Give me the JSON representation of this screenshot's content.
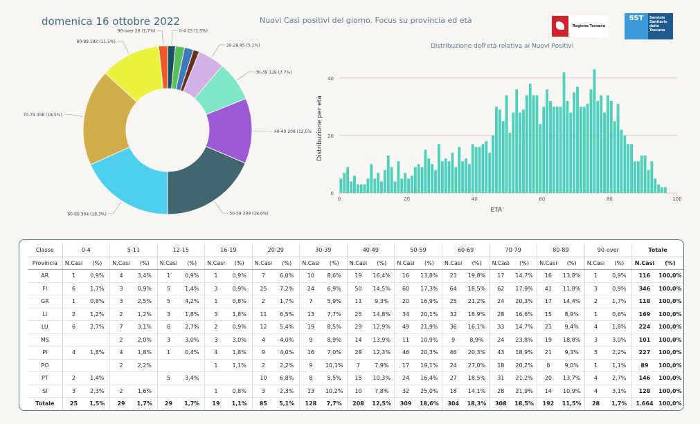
{
  "header": {
    "date": "domenica 16 ottobre 2022",
    "title": "Nuovi Casi positivi del giorno. Focus su provincia ed età",
    "logo_rt_text": "Regione Toscana",
    "logo_sst_abbr": "SST",
    "logo_sst_text": "Servizio Sanitario della Toscana"
  },
  "chart_data": [
    {
      "type": "pie",
      "title": "",
      "labels": [
        "0-4",
        "5-11",
        "12-15",
        "16-19",
        "20-29",
        "30-39",
        "40-49",
        "50-59",
        "60-69",
        "70-79",
        "80-89",
        "90-over"
      ],
      "values": [
        25,
        29,
        29,
        19,
        85,
        128,
        208,
        309,
        304,
        308,
        192,
        28
      ],
      "slice_labels": [
        "0-4 25 (1,5%)",
        "",
        "",
        "",
        "20-29 85 (5,1%)",
        "30-39 128 (7,7%)",
        "40-49 208 (12,5%)",
        "50-59 309 (18,6%)",
        "60-69 304 (18,3%)",
        "70-79 308 (18,5%)",
        "80-89 192 (11,5%)",
        "90-over 28 (1,7%)"
      ],
      "colors": [
        "#1b4f63",
        "#59bf59",
        "#3d7bbf",
        "#6a2d1e",
        "#d3b0e6",
        "#80e6c8",
        "#9c5ad6",
        "#41666f",
        "#4fcff0",
        "#d1ae4a",
        "#e9f23c",
        "#ee5a26"
      ]
    },
    {
      "type": "bar",
      "title": "Distribuzione dell'età relativa ai Nuovi Positivi",
      "xlabel": "ETA'",
      "ylabel": "Distribuzione per età",
      "xlim": [
        0,
        100
      ],
      "ylim": [
        0,
        45
      ],
      "xticks": [
        0,
        20,
        40,
        60,
        80,
        100
      ],
      "yticks": [
        0,
        20,
        40
      ],
      "grid": true,
      "color": "#4ed0bd",
      "x": [
        0,
        1,
        2,
        3,
        4,
        5,
        6,
        7,
        8,
        9,
        10,
        11,
        12,
        13,
        14,
        15,
        16,
        17,
        18,
        19,
        20,
        21,
        22,
        23,
        24,
        25,
        26,
        27,
        28,
        29,
        30,
        31,
        32,
        33,
        34,
        35,
        36,
        37,
        38,
        39,
        40,
        41,
        42,
        43,
        44,
        45,
        46,
        47,
        48,
        49,
        50,
        51,
        52,
        53,
        54,
        55,
        56,
        57,
        58,
        59,
        60,
        61,
        62,
        63,
        64,
        65,
        66,
        67,
        68,
        69,
        70,
        71,
        72,
        73,
        74,
        75,
        76,
        77,
        78,
        79,
        80,
        81,
        82,
        83,
        84,
        85,
        86,
        87,
        88,
        89,
        90,
        91,
        92,
        93,
        94,
        95,
        96,
        97
      ],
      "values": [
        5,
        7,
        9,
        4,
        6,
        3,
        3,
        3,
        5,
        10,
        5,
        7,
        4,
        8,
        13,
        9,
        4,
        11,
        5,
        7,
        5,
        6,
        9,
        10,
        9,
        15,
        12,
        10,
        8,
        17,
        11,
        12,
        11,
        14,
        9,
        16,
        11,
        12,
        10,
        17,
        16,
        16,
        17,
        18,
        14,
        20,
        30,
        29,
        25,
        34,
        21,
        28,
        36,
        28,
        29,
        34,
        38,
        34,
        34,
        24,
        30,
        36,
        32,
        30,
        30,
        30,
        42,
        32,
        28,
        35,
        37,
        30,
        30,
        31,
        36,
        43,
        32,
        34,
        28,
        34,
        32,
        25,
        31,
        22,
        20,
        17,
        17,
        11,
        11,
        13,
        13,
        8,
        11,
        5,
        3,
        2,
        2,
        0
      ]
    }
  ],
  "table": {
    "age_header": "Classe",
    "prov_header": "Provincia",
    "total_header": "Totale",
    "col_ncasi": "N.Casi",
    "col_pct": "(%)",
    "age_classes": [
      "0-4",
      "5-11",
      "12-15",
      "16-19",
      "20-29",
      "30-39",
      "40-49",
      "50-59",
      "60-69",
      "70-79",
      "80-89",
      "90-over"
    ],
    "rows": [
      {
        "prov": "AR",
        "cells": [
          [
            "1",
            "0,9%"
          ],
          [
            "4",
            "3,4%"
          ],
          [
            "1",
            "0,9%"
          ],
          [
            "1",
            "0,9%"
          ],
          [
            "7",
            "6,0%"
          ],
          [
            "10",
            "8,6%"
          ],
          [
            "19",
            "16,4%"
          ],
          [
            "16",
            "13,8%"
          ],
          [
            "23",
            "19,8%"
          ],
          [
            "17",
            "14,7%"
          ],
          [
            "16",
            "13,8%"
          ],
          [
            "1",
            "0,9%"
          ]
        ],
        "tot": "116",
        "pct": "100,0%"
      },
      {
        "prov": "FI",
        "cells": [
          [
            "6",
            "1,7%"
          ],
          [
            "3",
            "0,9%"
          ],
          [
            "5",
            "1,4%"
          ],
          [
            "3",
            "0,9%"
          ],
          [
            "25",
            "7,2%"
          ],
          [
            "24",
            "6,9%"
          ],
          [
            "50",
            "14,5%"
          ],
          [
            "60",
            "17,3%"
          ],
          [
            "64",
            "18,5%"
          ],
          [
            "62",
            "17,9%"
          ],
          [
            "41",
            "11,8%"
          ],
          [
            "3",
            "0,9%"
          ]
        ],
        "tot": "346",
        "pct": "100,0%"
      },
      {
        "prov": "GR",
        "cells": [
          [
            "1",
            "0,8%"
          ],
          [
            "3",
            "2,5%"
          ],
          [
            "5",
            "4,2%"
          ],
          [
            "1",
            "0,8%"
          ],
          [
            "2",
            "1,7%"
          ],
          [
            "7",
            "5,9%"
          ],
          [
            "11",
            "9,3%"
          ],
          [
            "20",
            "16,9%"
          ],
          [
            "25",
            "21,2%"
          ],
          [
            "24",
            "20,3%"
          ],
          [
            "17",
            "14,4%"
          ],
          [
            "2",
            "1,7%"
          ]
        ],
        "tot": "118",
        "pct": "100,0%"
      },
      {
        "prov": "LI",
        "cells": [
          [
            "2",
            "1,2%"
          ],
          [
            "2",
            "1,2%"
          ],
          [
            "3",
            "1,8%"
          ],
          [
            "3",
            "1,8%"
          ],
          [
            "11",
            "6,5%"
          ],
          [
            "13",
            "7,7%"
          ],
          [
            "25",
            "14,8%"
          ],
          [
            "34",
            "20,1%"
          ],
          [
            "32",
            "18,9%"
          ],
          [
            "28",
            "16,6%"
          ],
          [
            "15",
            "8,9%"
          ],
          [
            "1",
            "0,6%"
          ]
        ],
        "tot": "169",
        "pct": "100,0%"
      },
      {
        "prov": "LU",
        "cells": [
          [
            "6",
            "2,7%"
          ],
          [
            "7",
            "3,1%"
          ],
          [
            "6",
            "2,7%"
          ],
          [
            "2",
            "0,9%"
          ],
          [
            "12",
            "5,4%"
          ],
          [
            "19",
            "8,5%"
          ],
          [
            "29",
            "12,9%"
          ],
          [
            "49",
            "21,9%"
          ],
          [
            "36",
            "16,1%"
          ],
          [
            "33",
            "14,7%"
          ],
          [
            "21",
            "9,4%"
          ],
          [
            "4",
            "1,8%"
          ]
        ],
        "tot": "224",
        "pct": "100,0%"
      },
      {
        "prov": "MS",
        "cells": [
          [
            "",
            ""
          ],
          [
            "2",
            "2,0%"
          ],
          [
            "3",
            "3,0%"
          ],
          [
            "3",
            "3,0%"
          ],
          [
            "4",
            "4,0%"
          ],
          [
            "9",
            "8,9%"
          ],
          [
            "14",
            "13,9%"
          ],
          [
            "11",
            "10,9%"
          ],
          [
            "9",
            "8,9%"
          ],
          [
            "24",
            "23,8%"
          ],
          [
            "19",
            "18,8%"
          ],
          [
            "3",
            "3,0%"
          ]
        ],
        "tot": "101",
        "pct": "100,0%"
      },
      {
        "prov": "PI",
        "cells": [
          [
            "4",
            "1,8%"
          ],
          [
            "4",
            "1,8%"
          ],
          [
            "1",
            "0,4%"
          ],
          [
            "4",
            "1,8%"
          ],
          [
            "9",
            "4,0%"
          ],
          [
            "16",
            "7,0%"
          ],
          [
            "28",
            "12,3%"
          ],
          [
            "46",
            "20,3%"
          ],
          [
            "46",
            "20,3%"
          ],
          [
            "43",
            "18,9%"
          ],
          [
            "21",
            "9,3%"
          ],
          [
            "5",
            "2,2%"
          ]
        ],
        "tot": "227",
        "pct": "100,0%"
      },
      {
        "prov": "PO",
        "cells": [
          [
            "",
            ""
          ],
          [
            "2",
            "2,2%"
          ],
          [
            "",
            ""
          ],
          [
            "1",
            "1,1%"
          ],
          [
            "2",
            "2,2%"
          ],
          [
            "9",
            "10,1%"
          ],
          [
            "7",
            "7,9%"
          ],
          [
            "17",
            "19,1%"
          ],
          [
            "24",
            "27,0%"
          ],
          [
            "18",
            "20,2%"
          ],
          [
            "8",
            "9,0%"
          ],
          [
            "1",
            "1,1%"
          ]
        ],
        "tot": "89",
        "pct": "100,0%"
      },
      {
        "prov": "PT",
        "cells": [
          [
            "2",
            "1,4%"
          ],
          [
            "",
            ""
          ],
          [
            "5",
            "3,4%"
          ],
          [
            "",
            ""
          ],
          [
            "10",
            "6,8%"
          ],
          [
            "8",
            "5,5%"
          ],
          [
            "15",
            "10,3%"
          ],
          [
            "24",
            "16,4%"
          ],
          [
            "27",
            "18,5%"
          ],
          [
            "31",
            "21,2%"
          ],
          [
            "20",
            "13,7%"
          ],
          [
            "4",
            "2,7%"
          ]
        ],
        "tot": "146",
        "pct": "100,0%"
      },
      {
        "prov": "SI",
        "cells": [
          [
            "3",
            "2,3%"
          ],
          [
            "2",
            "1,6%"
          ],
          [
            "",
            ""
          ],
          [
            "1",
            "0,8%"
          ],
          [
            "3",
            "2,3%"
          ],
          [
            "13",
            "10,2%"
          ],
          [
            "10",
            "7,8%"
          ],
          [
            "32",
            "25,0%"
          ],
          [
            "18",
            "14,1%"
          ],
          [
            "28",
            "21,9%"
          ],
          [
            "14",
            "10,9%"
          ],
          [
            "4",
            "3,1%"
          ]
        ],
        "tot": "128",
        "pct": "100,0%"
      }
    ],
    "total": {
      "prov": "Totale",
      "cells": [
        [
          "25",
          "1,5%"
        ],
        [
          "29",
          "1,7%"
        ],
        [
          "29",
          "1,7%"
        ],
        [
          "19",
          "1,1%"
        ],
        [
          "85",
          "5,1%"
        ],
        [
          "128",
          "7,7%"
        ],
        [
          "208",
          "12,5%"
        ],
        [
          "309",
          "18,6%"
        ],
        [
          "304",
          "18,3%"
        ],
        [
          "308",
          "18,5%"
        ],
        [
          "192",
          "11,5%"
        ],
        [
          "28",
          "1,7%"
        ]
      ],
      "tot": "1.664",
      "pct": "100,0%"
    }
  }
}
